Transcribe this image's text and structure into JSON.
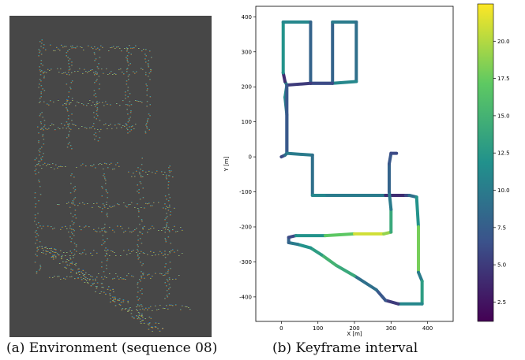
{
  "captions": {
    "a": "(a) Environment (sequence 08)",
    "b": "(b) Keyframe interval"
  },
  "colors": {
    "map_background": "#474747",
    "trajectory_cmap": [
      "#440154",
      "#3b528b",
      "#21918c",
      "#5ec962",
      "#fde725"
    ]
  },
  "chart_data": [
    {
      "type": "image",
      "description_key": "point-cloud-map",
      "colormap": "jet"
    },
    {
      "type": "line",
      "xlabel": "X [m]",
      "ylabel": "Y [m]",
      "xlim": [
        -70,
        470
      ],
      "ylim": [
        -470,
        430
      ],
      "xticks": [
        0,
        100,
        200,
        300,
        400
      ],
      "yticks": [
        -400,
        -300,
        -200,
        -100,
        0,
        100,
        200,
        300,
        400
      ],
      "grid": false,
      "colorbar": {
        "min": 1.2,
        "max": 22.5,
        "ticks": [
          2.5,
          5.0,
          7.5,
          10.0,
          12.5,
          15.0,
          17.5,
          20.0
        ],
        "tick_labels": [
          "2.5",
          "5.0",
          "7.5",
          "10.0",
          "12.5",
          "15.0",
          "17.5",
          "20.0"
        ]
      },
      "trajectory": [
        [
          0,
          0
        ],
        [
          10,
          5
        ],
        [
          15,
          10
        ],
        [
          15,
          120
        ],
        [
          10,
          170
        ],
        [
          15,
          205
        ],
        [
          10,
          215
        ],
        [
          5,
          240
        ],
        [
          5,
          385
        ],
        [
          80,
          385
        ],
        [
          80,
          210
        ],
        [
          140,
          210
        ],
        [
          140,
          385
        ],
        [
          205,
          385
        ],
        [
          205,
          215
        ],
        [
          140,
          210
        ],
        [
          80,
          210
        ],
        [
          15,
          205
        ],
        [
          15,
          10
        ],
        [
          85,
          5
        ],
        [
          85,
          -110
        ],
        [
          125,
          -110
        ],
        [
          285,
          -110
        ],
        [
          340,
          -110
        ],
        [
          350,
          -110
        ],
        [
          370,
          -115
        ],
        [
          375,
          -200
        ],
        [
          375,
          -330
        ],
        [
          385,
          -355
        ],
        [
          385,
          -420
        ],
        [
          320,
          -420
        ],
        [
          285,
          -410
        ],
        [
          260,
          -380
        ],
        [
          200,
          -340
        ],
        [
          150,
          -310
        ],
        [
          110,
          -280
        ],
        [
          80,
          -260
        ],
        [
          45,
          -250
        ],
        [
          20,
          -245
        ],
        [
          20,
          -230
        ],
        [
          40,
          -225
        ],
        [
          120,
          -225
        ],
        [
          200,
          -220
        ],
        [
          280,
          -220
        ],
        [
          300,
          -215
        ],
        [
          300,
          -150
        ],
        [
          295,
          -100
        ],
        [
          295,
          -20
        ],
        [
          300,
          10
        ],
        [
          315,
          10
        ]
      ],
      "trajectory_values": [
        6,
        9,
        10,
        10,
        11,
        12,
        4,
        12,
        11,
        8,
        9,
        8,
        10,
        9,
        11,
        6,
        5,
        7,
        10,
        9,
        11,
        10,
        4,
        6,
        9,
        12,
        18,
        10,
        13,
        11,
        5,
        7,
        9,
        14,
        15,
        13,
        12,
        10,
        8,
        6,
        12,
        17,
        21,
        19,
        14,
        10,
        8,
        7,
        6,
        5
      ]
    }
  ]
}
